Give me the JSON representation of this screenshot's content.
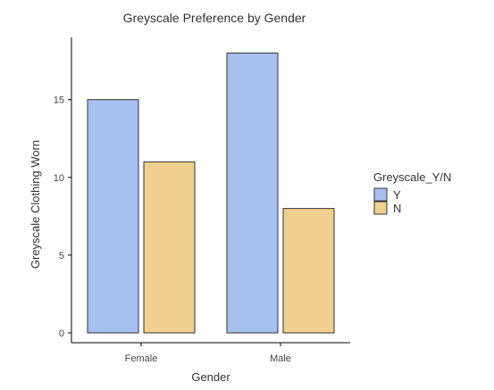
{
  "chart_data": {
    "type": "bar",
    "title": "Greyscale Preference by Gender",
    "xlabel": "Gender",
    "ylabel": "Greyscale Clothing Worn",
    "categories": [
      "Female",
      "Male"
    ],
    "series": [
      {
        "name": "Y",
        "values": [
          15,
          18
        ],
        "color": "#a6c1f0"
      },
      {
        "name": "N",
        "values": [
          11,
          8
        ],
        "color": "#f0cf8f"
      }
    ],
    "ylim": [
      0,
      19
    ],
    "yticks": [
      0,
      5,
      10,
      15
    ],
    "grid": false,
    "legend": {
      "title": "Greyscale_Y/N",
      "placement": "right"
    }
  }
}
